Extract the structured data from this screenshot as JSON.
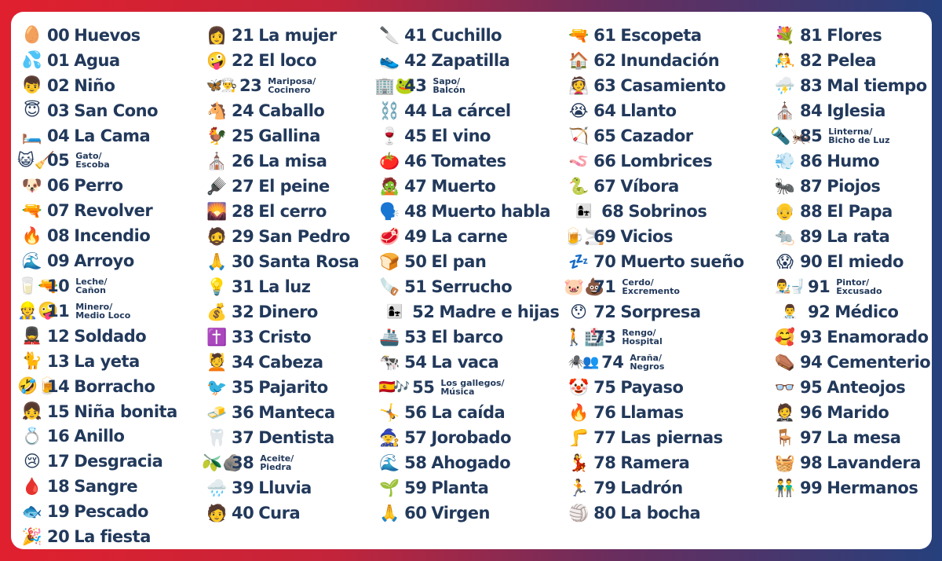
{
  "columns": [
    [
      {
        "emoji": "🥚",
        "num": "00",
        "name": "Huevos"
      },
      {
        "emoji": "💦",
        "num": "01",
        "name": "Agua"
      },
      {
        "emoji": "👦",
        "num": "02",
        "name": "Niño"
      },
      {
        "emoji": "😇",
        "num": "03",
        "name": "San Cono"
      },
      {
        "emoji": "🛏️",
        "num": "04",
        "name": "La Cama"
      },
      {
        "emoji": "😺🧹",
        "num": "05",
        "name": "Gato/\nEscoba",
        "small": true
      },
      {
        "emoji": "🐶",
        "num": "06",
        "name": "Perro"
      },
      {
        "emoji": "🔫",
        "num": "07",
        "name": "Revolver"
      },
      {
        "emoji": "🔥",
        "num": "08",
        "name": "Incendio"
      },
      {
        "emoji": "🌊",
        "num": "09",
        "name": "Arroyo"
      },
      {
        "emoji": "🥛🔫",
        "num": "10",
        "name": "Leche/\nCañon",
        "small": true
      },
      {
        "emoji": "👷🤪",
        "num": "11",
        "name": "Minero/\nMedio Loco",
        "small": true
      },
      {
        "emoji": "💂",
        "num": "12",
        "name": "Soldado"
      },
      {
        "emoji": "🐈",
        "num": "13",
        "name": "La yeta"
      },
      {
        "emoji": "🤣🍺",
        "num": "14",
        "name": "Borracho"
      },
      {
        "emoji": "👧",
        "num": "15",
        "name": "Niña bonita"
      },
      {
        "emoji": "💍",
        "num": "16",
        "name": "Anillo"
      },
      {
        "emoji": "😢",
        "num": "17",
        "name": "Desgracia"
      },
      {
        "emoji": "🩸",
        "num": "18",
        "name": "Sangre"
      },
      {
        "emoji": "🐟",
        "num": "19",
        "name": "Pescado"
      },
      {
        "emoji": "🎉",
        "num": "20",
        "name": "La fiesta"
      }
    ],
    [
      {
        "emoji": "👩",
        "num": "21",
        "name": "La mujer"
      },
      {
        "emoji": "🤪",
        "num": "22",
        "name": "El loco"
      },
      {
        "emoji": "🦋👨‍🍳",
        "num": "23",
        "name": "Mariposa/\nCocinero",
        "small": true
      },
      {
        "emoji": "🐴",
        "num": "24",
        "name": "Caballo"
      },
      {
        "emoji": "🐓",
        "num": "25",
        "name": "Gallina"
      },
      {
        "emoji": "⛪",
        "num": "26",
        "name": "La misa"
      },
      {
        "emoji": "🪮",
        "num": "27",
        "name": "El peine"
      },
      {
        "emoji": "🌄",
        "num": "28",
        "name": "El cerro"
      },
      {
        "emoji": "🧔",
        "num": "29",
        "name": "San Pedro"
      },
      {
        "emoji": "🙏",
        "num": "30",
        "name": "Santa Rosa"
      },
      {
        "emoji": "💡",
        "num": "31",
        "name": "La luz"
      },
      {
        "emoji": "💰",
        "num": "32",
        "name": "Dinero"
      },
      {
        "emoji": "✝️",
        "num": "33",
        "name": "Cristo"
      },
      {
        "emoji": "💆",
        "num": "34",
        "name": "Cabeza"
      },
      {
        "emoji": "🐦",
        "num": "35",
        "name": "Pajarito"
      },
      {
        "emoji": "🧈",
        "num": "36",
        "name": "Manteca"
      },
      {
        "emoji": "🦷",
        "num": "37",
        "name": "Dentista"
      },
      {
        "emoji": "🫒🪨",
        "num": "38",
        "name": "Aceite/\nPiedra",
        "small": true
      },
      {
        "emoji": "🌧️",
        "num": "39",
        "name": "Lluvia"
      },
      {
        "emoji": "🧑",
        "num": "40",
        "name": "Cura"
      }
    ],
    [
      {
        "emoji": "🔪",
        "num": "41",
        "name": "Cuchillo"
      },
      {
        "emoji": "👟",
        "num": "42",
        "name": "Zapatilla"
      },
      {
        "emoji": "🏢🐸",
        "num": "43",
        "name": "Sapo/\nBalcón",
        "small": true
      },
      {
        "emoji": "⛓️",
        "num": "44",
        "name": "La cárcel"
      },
      {
        "emoji": "🍷",
        "num": "45",
        "name": "El vino"
      },
      {
        "emoji": "🍅",
        "num": "46",
        "name": "Tomates"
      },
      {
        "emoji": "🧟",
        "num": "47",
        "name": "Muerto"
      },
      {
        "emoji": "🗣️",
        "num": "48",
        "name": "Muerto habla"
      },
      {
        "emoji": "🥩",
        "num": "49",
        "name": "La carne"
      },
      {
        "emoji": "🍞",
        "num": "50",
        "name": "El pan"
      },
      {
        "emoji": "🪚",
        "num": "51",
        "name": "Serrucho"
      },
      {
        "emoji": "👩‍👧",
        "num": "52",
        "name": "Madre e hijas"
      },
      {
        "emoji": "🚢",
        "num": "53",
        "name": "El barco"
      },
      {
        "emoji": "🐄",
        "num": "54",
        "name": "La vaca"
      },
      {
        "emoji": "🇪🇸🎶",
        "num": "55",
        "name": "Los gallegos/\nMúsica",
        "small": true
      },
      {
        "emoji": "🤸",
        "num": "56",
        "name": "La caída"
      },
      {
        "emoji": "🧙",
        "num": "57",
        "name": "Jorobado"
      },
      {
        "emoji": "🌊",
        "num": "58",
        "name": "Ahogado"
      },
      {
        "emoji": "🌱",
        "num": "59",
        "name": "Planta"
      },
      {
        "emoji": "🙏",
        "num": "60",
        "name": "Virgen"
      }
    ],
    [
      {
        "emoji": "🔫",
        "num": "61",
        "name": "Escopeta"
      },
      {
        "emoji": "🏠",
        "num": "62",
        "name": "Inundación"
      },
      {
        "emoji": "👰",
        "num": "63",
        "name": "Casamiento"
      },
      {
        "emoji": "😭",
        "num": "64",
        "name": "Llanto"
      },
      {
        "emoji": "🏹",
        "num": "65",
        "name": "Cazador"
      },
      {
        "emoji": "🪱",
        "num": "66",
        "name": "Lombrices"
      },
      {
        "emoji": "🐍",
        "num": "67",
        "name": "Víbora"
      },
      {
        "emoji": "👩‍👧",
        "num": "68",
        "name": "Sobrinos"
      },
      {
        "emoji": "🍺🚬",
        "num": "69",
        "name": "Vicios"
      },
      {
        "emoji": "💤",
        "num": "70",
        "name": "Muerto sueño"
      },
      {
        "emoji": "🐷💩",
        "num": "71",
        "name": "Cerdo/\nExcremento",
        "small": true
      },
      {
        "emoji": "😯",
        "num": "72",
        "name": "Sorpresa"
      },
      {
        "emoji": "🚶🏥",
        "num": "73",
        "name": "Rengo/\nHospital",
        "small": true
      },
      {
        "emoji": "🕷️👥",
        "num": "74",
        "name": "Araña/\nNegros",
        "small": true
      },
      {
        "emoji": "🤡",
        "num": "75",
        "name": "Payaso"
      },
      {
        "emoji": "🔥",
        "num": "76",
        "name": "Llamas"
      },
      {
        "emoji": "🦵",
        "num": "77",
        "name": "Las piernas"
      },
      {
        "emoji": "💃",
        "num": "78",
        "name": "Ramera"
      },
      {
        "emoji": "🏃",
        "num": "79",
        "name": "Ladrón"
      },
      {
        "emoji": "🏐",
        "num": "80",
        "name": "La bocha"
      }
    ],
    [
      {
        "emoji": "💐",
        "num": "81",
        "name": "Flores"
      },
      {
        "emoji": "🤼",
        "num": "82",
        "name": "Pelea"
      },
      {
        "emoji": "⛈️",
        "num": "83",
        "name": "Mal tiempo"
      },
      {
        "emoji": "⛪",
        "num": "84",
        "name": "Iglesia"
      },
      {
        "emoji": "🔦🦗",
        "num": "85",
        "name": "Linterna/\nBicho de Luz",
        "small": true
      },
      {
        "emoji": "💨",
        "num": "86",
        "name": "Humo"
      },
      {
        "emoji": "🐜",
        "num": "87",
        "name": "Piojos"
      },
      {
        "emoji": "👴",
        "num": "88",
        "name": "El Papa"
      },
      {
        "emoji": "🐀",
        "num": "89",
        "name": "La rata"
      },
      {
        "emoji": "😱",
        "num": "90",
        "name": "El miedo"
      },
      {
        "emoji": "👨‍🎨🚽",
        "num": "91",
        "name": "Pintor/\nExcusado",
        "small": true
      },
      {
        "emoji": "👨‍⚕️",
        "num": "92",
        "name": "Médico"
      },
      {
        "emoji": "🥰",
        "num": "93",
        "name": "Enamorado"
      },
      {
        "emoji": "⚰️",
        "num": "94",
        "name": "Cementerio"
      },
      {
        "emoji": "👓",
        "num": "95",
        "name": "Anteojos"
      },
      {
        "emoji": "🤵",
        "num": "96",
        "name": "Marido"
      },
      {
        "emoji": "🪑",
        "num": "97",
        "name": "La mesa"
      },
      {
        "emoji": "🧺",
        "num": "98",
        "name": "Lavandera"
      },
      {
        "emoji": "👬",
        "num": "99",
        "name": "Hermanos"
      }
    ]
  ]
}
